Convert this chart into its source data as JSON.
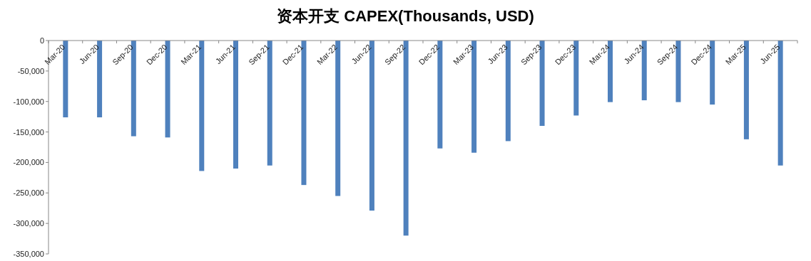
{
  "chart_data": {
    "type": "bar",
    "title": "资本开支 CAPEX(Thousands, USD)",
    "categories": [
      "Mar-20",
      "Jun-20",
      "Sep-20",
      "Dec-20",
      "Mar-21",
      "Jun-21",
      "Sep-21",
      "Dec-21",
      "Mar-22",
      "Jun-22",
      "Sep-22",
      "Dec-22",
      "Mar-23",
      "Jun-23",
      "Sep-23",
      "Dec-23",
      "Mar-24",
      "Jun-24",
      "Sep-24",
      "Dec-24",
      "Mar-25",
      "Jun-25"
    ],
    "values": [
      -126000,
      -126000,
      -157000,
      -159000,
      -214000,
      -210000,
      -205000,
      -237000,
      -255000,
      -279000,
      -320000,
      -177000,
      -184000,
      -165000,
      -140000,
      -123000,
      -101000,
      -98000,
      -101000,
      -105000,
      -162000,
      -205000
    ],
    "color": "#4f81bd",
    "ylim": [
      -350000,
      0
    ],
    "yticks": [
      {
        "value": -350000,
        "label": "-350,000"
      },
      {
        "value": -300000,
        "label": "-300,000"
      },
      {
        "value": -250000,
        "label": "-250,000"
      },
      {
        "value": -200000,
        "label": "-200,000"
      },
      {
        "value": -150000,
        "label": "-150,000"
      },
      {
        "value": -100000,
        "label": "-100,000"
      },
      {
        "value": -50000,
        "label": "-50,000"
      },
      0
    ]
  }
}
